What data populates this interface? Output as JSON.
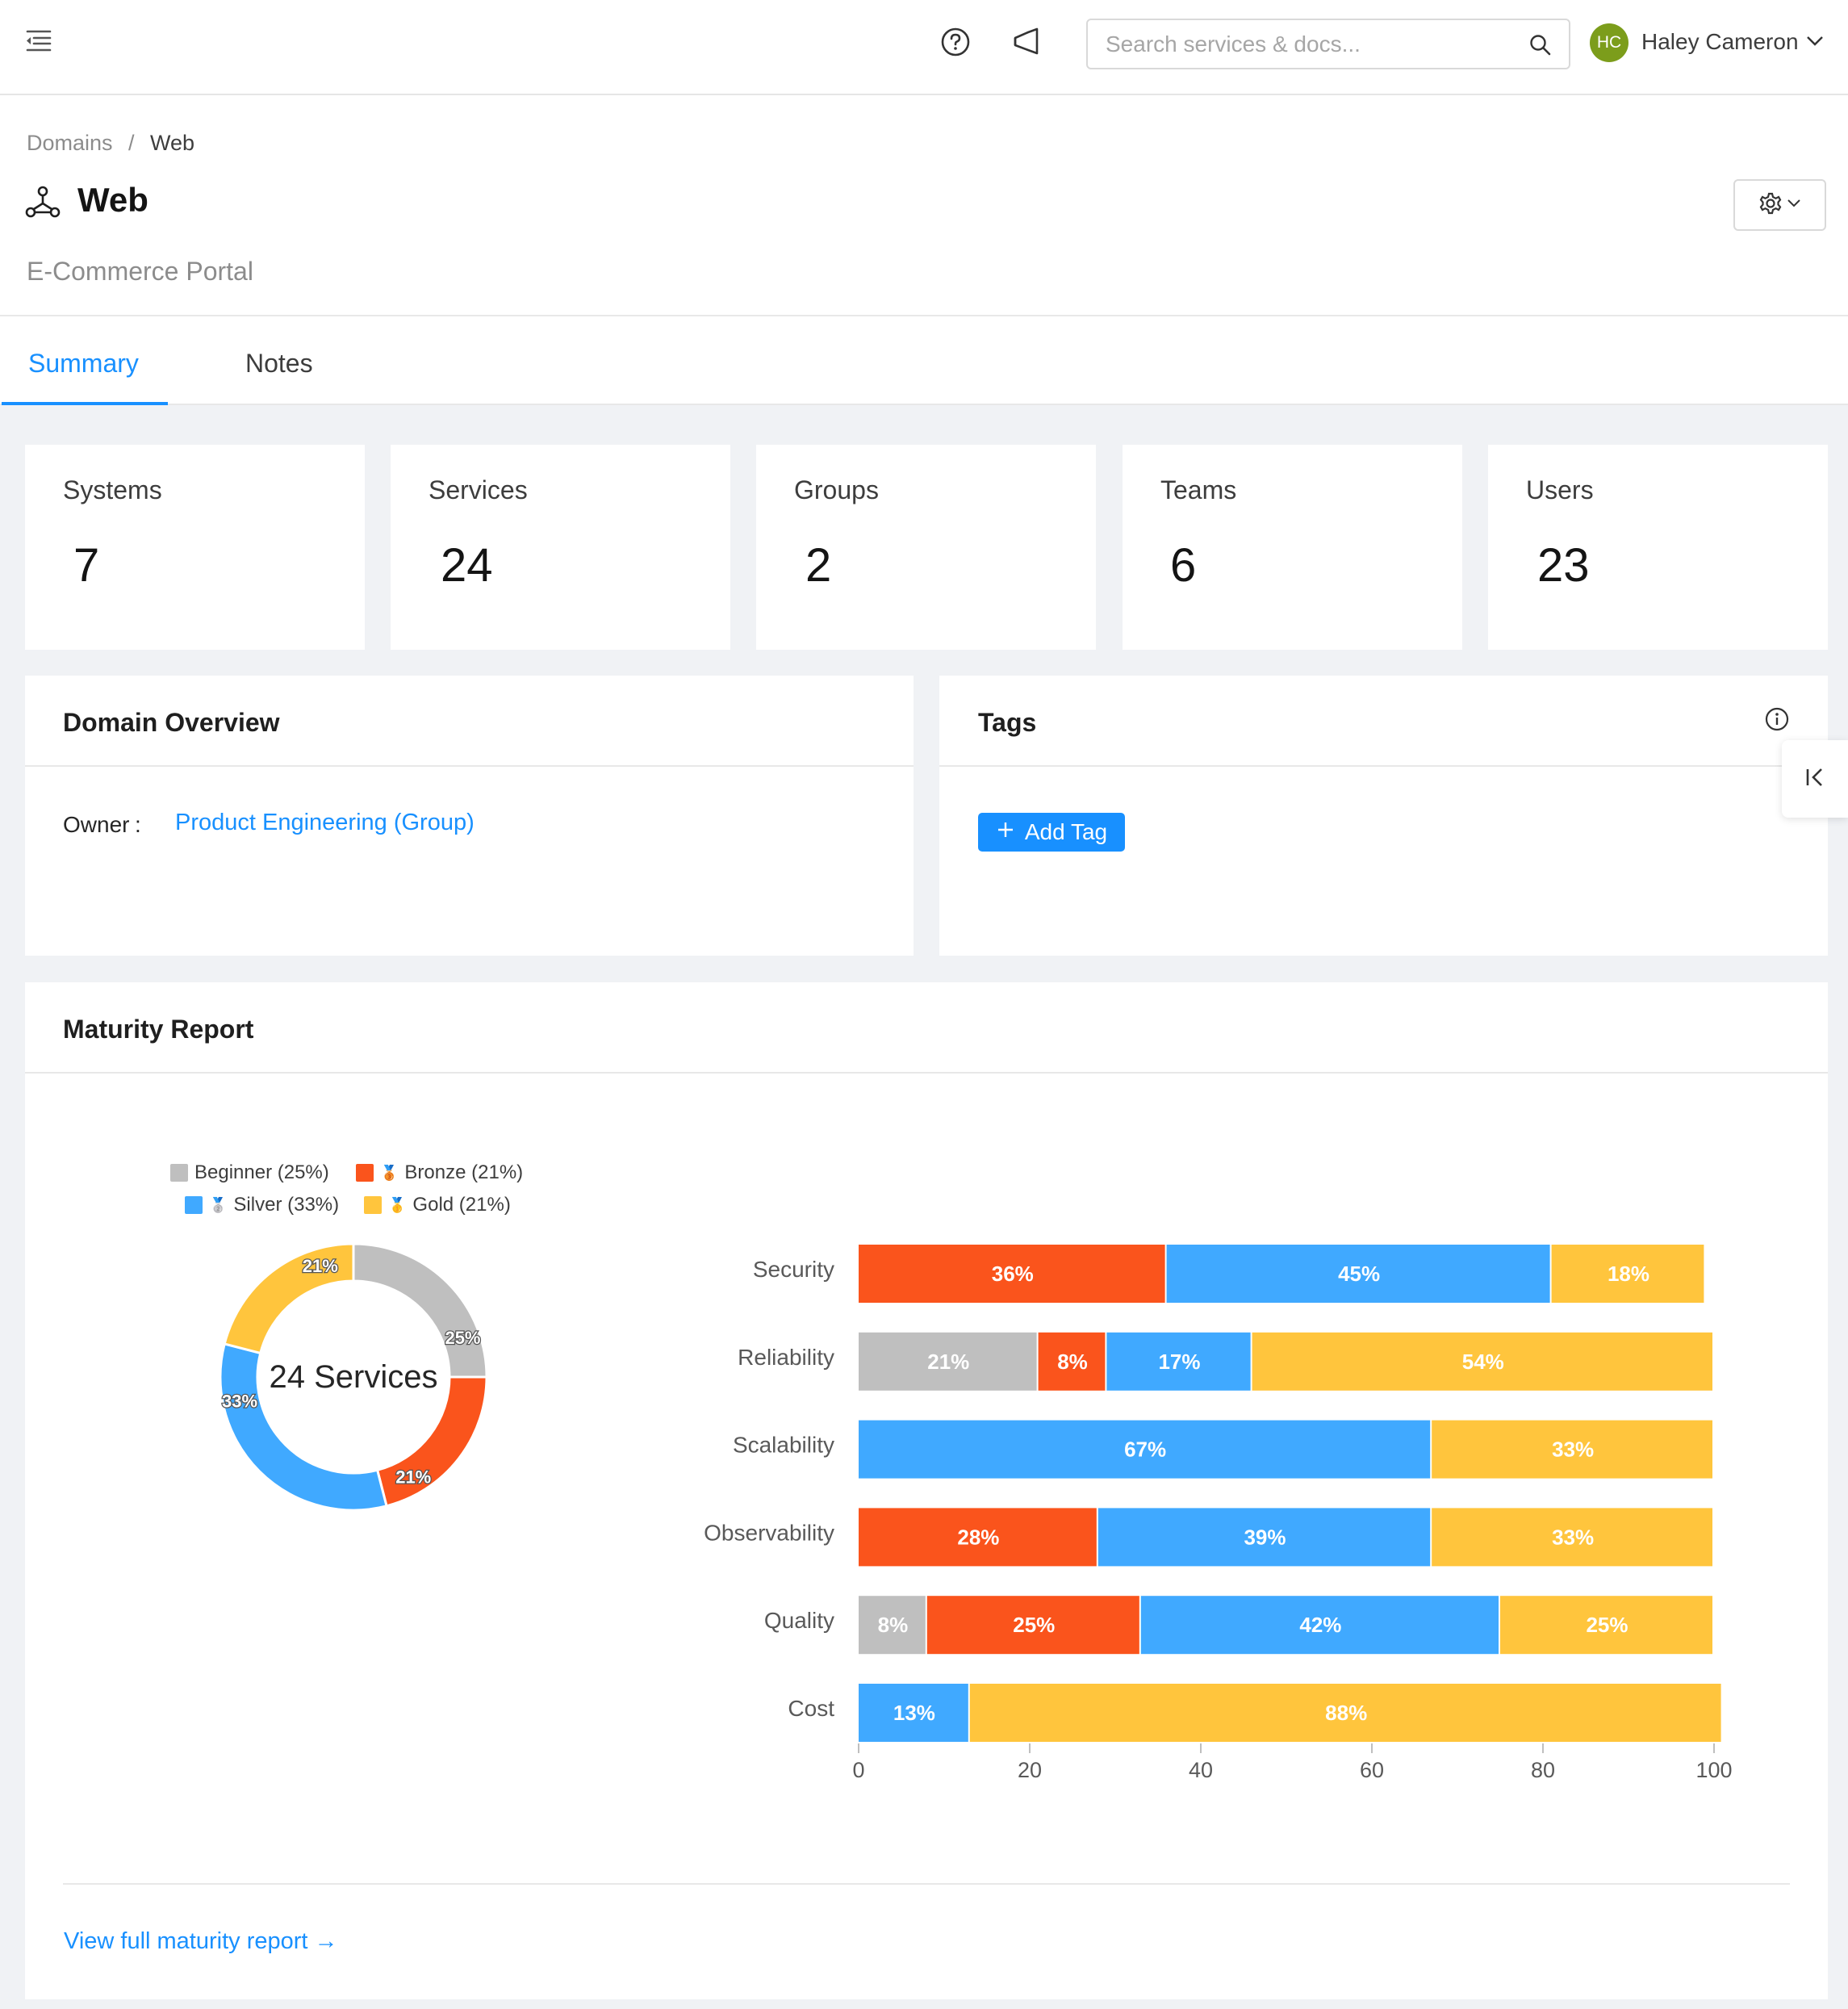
{
  "topbar": {
    "search_placeholder": "Search services & docs...",
    "user_initials": "HC",
    "user_name": "Haley Cameron"
  },
  "breadcrumb": {
    "root": "Domains",
    "separator": "/",
    "current": "Web"
  },
  "page": {
    "title": "Web",
    "subtitle": "E-Commerce Portal"
  },
  "tabs": [
    {
      "label": "Summary",
      "active": true
    },
    {
      "label": "Notes",
      "active": false
    }
  ],
  "stats": [
    {
      "label": "Systems",
      "value": "7"
    },
    {
      "label": "Services",
      "value": "24"
    },
    {
      "label": "Groups",
      "value": "2"
    },
    {
      "label": "Teams",
      "value": "6"
    },
    {
      "label": "Users",
      "value": "23"
    }
  ],
  "overview": {
    "title": "Domain Overview",
    "owner_label": "Owner",
    "owner_colon": ":",
    "owner_value": "Product Engineering (Group)"
  },
  "tags": {
    "title": "Tags",
    "add_label": "Add Tag"
  },
  "maturity": {
    "title": "Maturity Report",
    "link_label": "View full maturity report"
  },
  "colors": {
    "beginner": "#bfbfbf",
    "bronze": "#fa541c",
    "silver": "#40a9ff",
    "gold": "#ffc53d",
    "accent": "#1890ff"
  },
  "chart_data": [
    {
      "type": "pie",
      "center_label": "24 Services",
      "legend": [
        {
          "name": "Beginner",
          "label": "Beginner (25%)",
          "medal": ""
        },
        {
          "name": "Bronze",
          "label": "Bronze (21%)",
          "medal": "bronze-medal-icon"
        },
        {
          "name": "Silver",
          "label": "Silver (33%)",
          "medal": "silver-medal-icon"
        },
        {
          "name": "Gold",
          "label": "Gold (21%)",
          "medal": "gold-medal-icon"
        }
      ],
      "slices": [
        {
          "name": "Beginner",
          "value": 25,
          "label": "25%"
        },
        {
          "name": "Bronze",
          "value": 21,
          "label": "21%"
        },
        {
          "name": "Silver",
          "value": 33,
          "label": "33%"
        },
        {
          "name": "Gold",
          "value": 21,
          "label": "21%"
        }
      ]
    },
    {
      "type": "bar",
      "stacked": true,
      "orientation": "horizontal",
      "categories": [
        "Security",
        "Reliability",
        "Scalability",
        "Observability",
        "Quality",
        "Cost"
      ],
      "series": [
        {
          "name": "Beginner",
          "values": [
            0,
            21,
            0,
            0,
            8,
            0
          ]
        },
        {
          "name": "Bronze",
          "values": [
            36,
            8,
            0,
            28,
            25,
            0
          ]
        },
        {
          "name": "Silver",
          "values": [
            45,
            17,
            67,
            39,
            42,
            13
          ]
        },
        {
          "name": "Gold",
          "values": [
            18,
            54,
            33,
            33,
            25,
            88
          ]
        }
      ],
      "xlim": [
        0,
        100
      ],
      "xticks": [
        "0",
        "20",
        "40",
        "60",
        "80",
        "100"
      ],
      "grid": false
    }
  ]
}
